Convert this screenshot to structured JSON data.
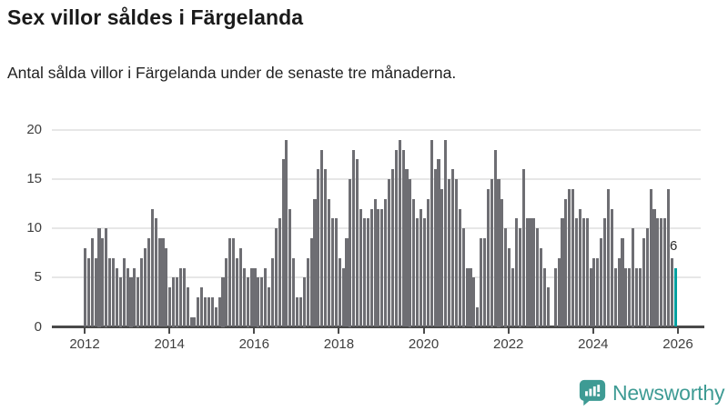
{
  "header": {
    "title": "Sex villor såldes i Färgelanda",
    "subtitle": "Antal sålda villor i Färgelanda under de senaste tre månaderna."
  },
  "annotation": {
    "label": "6"
  },
  "logo": {
    "text": "Newsworthy"
  },
  "colors": {
    "bar": "#6e6e73",
    "highlight": "#00a0a0",
    "axis": "#4a4a4a",
    "grid": "#e7e7e7",
    "label_text": "#3f3f3f",
    "title_text": "#1a1a1a",
    "logo_teal": "#3e9b94"
  },
  "chart_data": {
    "type": "bar",
    "title": "Sex villor såldes i Färgelanda",
    "subtitle": "Antal sålda villor i Färgelanda under de senaste tre månaderna.",
    "xlabel": "",
    "ylabel": "",
    "ylim": [
      0,
      20
    ],
    "y_ticks": [
      0,
      5,
      10,
      15,
      20
    ],
    "x_tick_labels": [
      "2012",
      "2014",
      "2016",
      "2018",
      "2020",
      "2022",
      "2024",
      "2026"
    ],
    "grid": "horizontal",
    "legend": "none",
    "start_year": 2012,
    "months_per_year": 12,
    "values_by_year": {
      "2012": [
        8,
        7,
        9,
        7,
        10,
        9,
        10,
        7,
        7,
        6,
        5,
        7
      ],
      "2013": [
        6,
        5,
        6,
        5,
        7,
        8,
        9,
        12,
        11,
        9,
        9,
        8
      ],
      "2014": [
        4,
        5,
        5,
        6,
        6,
        4,
        1,
        1,
        3,
        4,
        3,
        3
      ],
      "2015": [
        3,
        2,
        3,
        5,
        7,
        9,
        9,
        7,
        8,
        6,
        5,
        6
      ],
      "2016": [
        6,
        5,
        5,
        6,
        4,
        7,
        10,
        11,
        17,
        19,
        12,
        7
      ],
      "2017": [
        3,
        3,
        5,
        7,
        9,
        13,
        16,
        18,
        16,
        13,
        11,
        11
      ],
      "2018": [
        7,
        6,
        9,
        15,
        18,
        17,
        12,
        11,
        11,
        12,
        13,
        12
      ],
      "2019": [
        12,
        13,
        15,
        16,
        18,
        19,
        18,
        16,
        15,
        13,
        11,
        12
      ],
      "2020": [
        11,
        13,
        19,
        16,
        17,
        14,
        19,
        15,
        16,
        15,
        12,
        10
      ],
      "2021": [
        6,
        6,
        5,
        2,
        9,
        9,
        14,
        15,
        18,
        15,
        13,
        10
      ],
      "2022": [
        8,
        6,
        11,
        10,
        16,
        11,
        11,
        11,
        10,
        8,
        6,
        4
      ],
      "2023": [
        0,
        6,
        7,
        11,
        13,
        14,
        14,
        11,
        12,
        11,
        11,
        6
      ],
      "2024": [
        7,
        7,
        9,
        11,
        14,
        12,
        6,
        7,
        9,
        6,
        6,
        10
      ],
      "2025": [
        6,
        6,
        9,
        10,
        14,
        12,
        11,
        11,
        11,
        14,
        7,
        6
      ]
    },
    "highlight_last_value": 6,
    "highlight_last_label": "6"
  }
}
